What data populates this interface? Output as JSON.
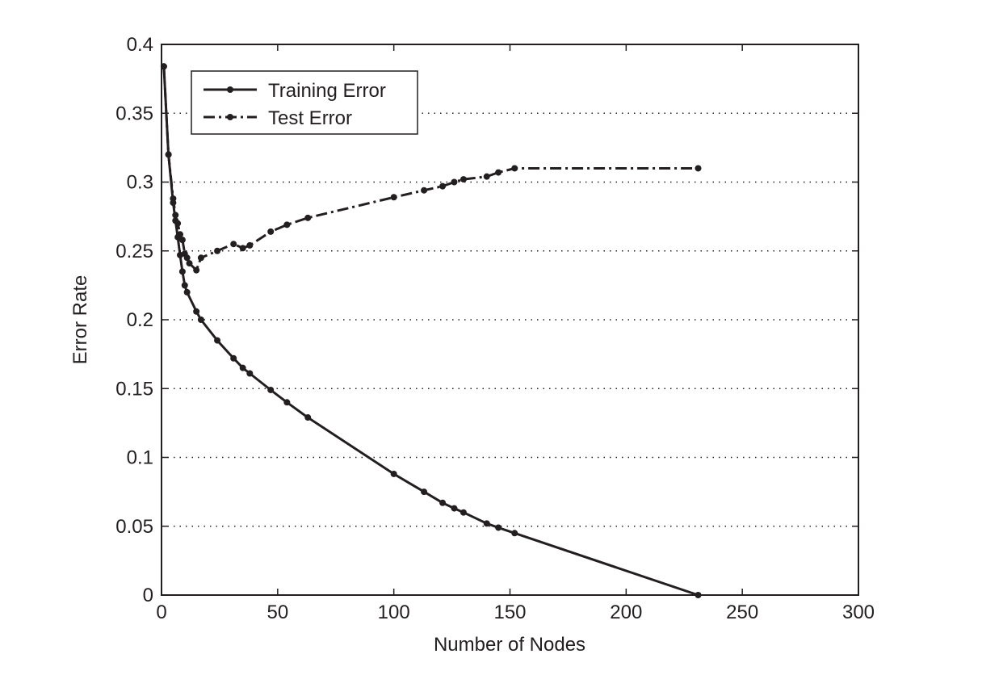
{
  "chart_data": {
    "type": "line",
    "title": "",
    "xlabel": "Number of Nodes",
    "ylabel": "Error Rate",
    "xlim": [
      0,
      300
    ],
    "ylim": [
      0,
      0.4
    ],
    "xticks": [
      0,
      50,
      100,
      150,
      200,
      250,
      300
    ],
    "yticks": [
      0,
      0.05,
      0.1,
      0.15,
      0.2,
      0.25,
      0.3,
      0.35,
      0.4
    ],
    "xtick_labels": [
      "0",
      "50",
      "100",
      "150",
      "200",
      "250",
      "300"
    ],
    "ytick_labels": [
      "0",
      "0.05",
      "0.1",
      "0.15",
      "0.2",
      "0.25",
      "0.3",
      "0.35",
      "0.4"
    ],
    "grid": "horizontal dotted",
    "legend_position": "top-left",
    "series": [
      {
        "name": "Training Error",
        "style": "solid",
        "color": "#231f20",
        "x": [
          1,
          3,
          5,
          6,
          7,
          8,
          9,
          10,
          11,
          15,
          17,
          24,
          31,
          35,
          38,
          47,
          54,
          63,
          100,
          113,
          121,
          126,
          130,
          140,
          145,
          152,
          231
        ],
        "y": [
          0.384,
          0.32,
          0.285,
          0.272,
          0.26,
          0.247,
          0.235,
          0.225,
          0.22,
          0.206,
          0.2,
          0.185,
          0.172,
          0.165,
          0.161,
          0.149,
          0.14,
          0.129,
          0.088,
          0.075,
          0.067,
          0.063,
          0.06,
          0.052,
          0.049,
          0.045,
          0.0
        ]
      },
      {
        "name": "Test Error",
        "style": "dash-dot",
        "color": "#231f20",
        "x": [
          1,
          3,
          5,
          6,
          7,
          8,
          9,
          10,
          11,
          12,
          15,
          17,
          24,
          31,
          35,
          38,
          47,
          54,
          63,
          100,
          113,
          121,
          126,
          130,
          140,
          145,
          152,
          231
        ],
        "y": [
          0.384,
          0.32,
          0.288,
          0.276,
          0.27,
          0.262,
          0.258,
          0.248,
          0.245,
          0.241,
          0.236,
          0.245,
          0.25,
          0.255,
          0.252,
          0.254,
          0.264,
          0.269,
          0.274,
          0.289,
          0.294,
          0.297,
          0.3,
          0.302,
          0.304,
          0.307,
          0.31,
          0.31
        ]
      }
    ]
  }
}
